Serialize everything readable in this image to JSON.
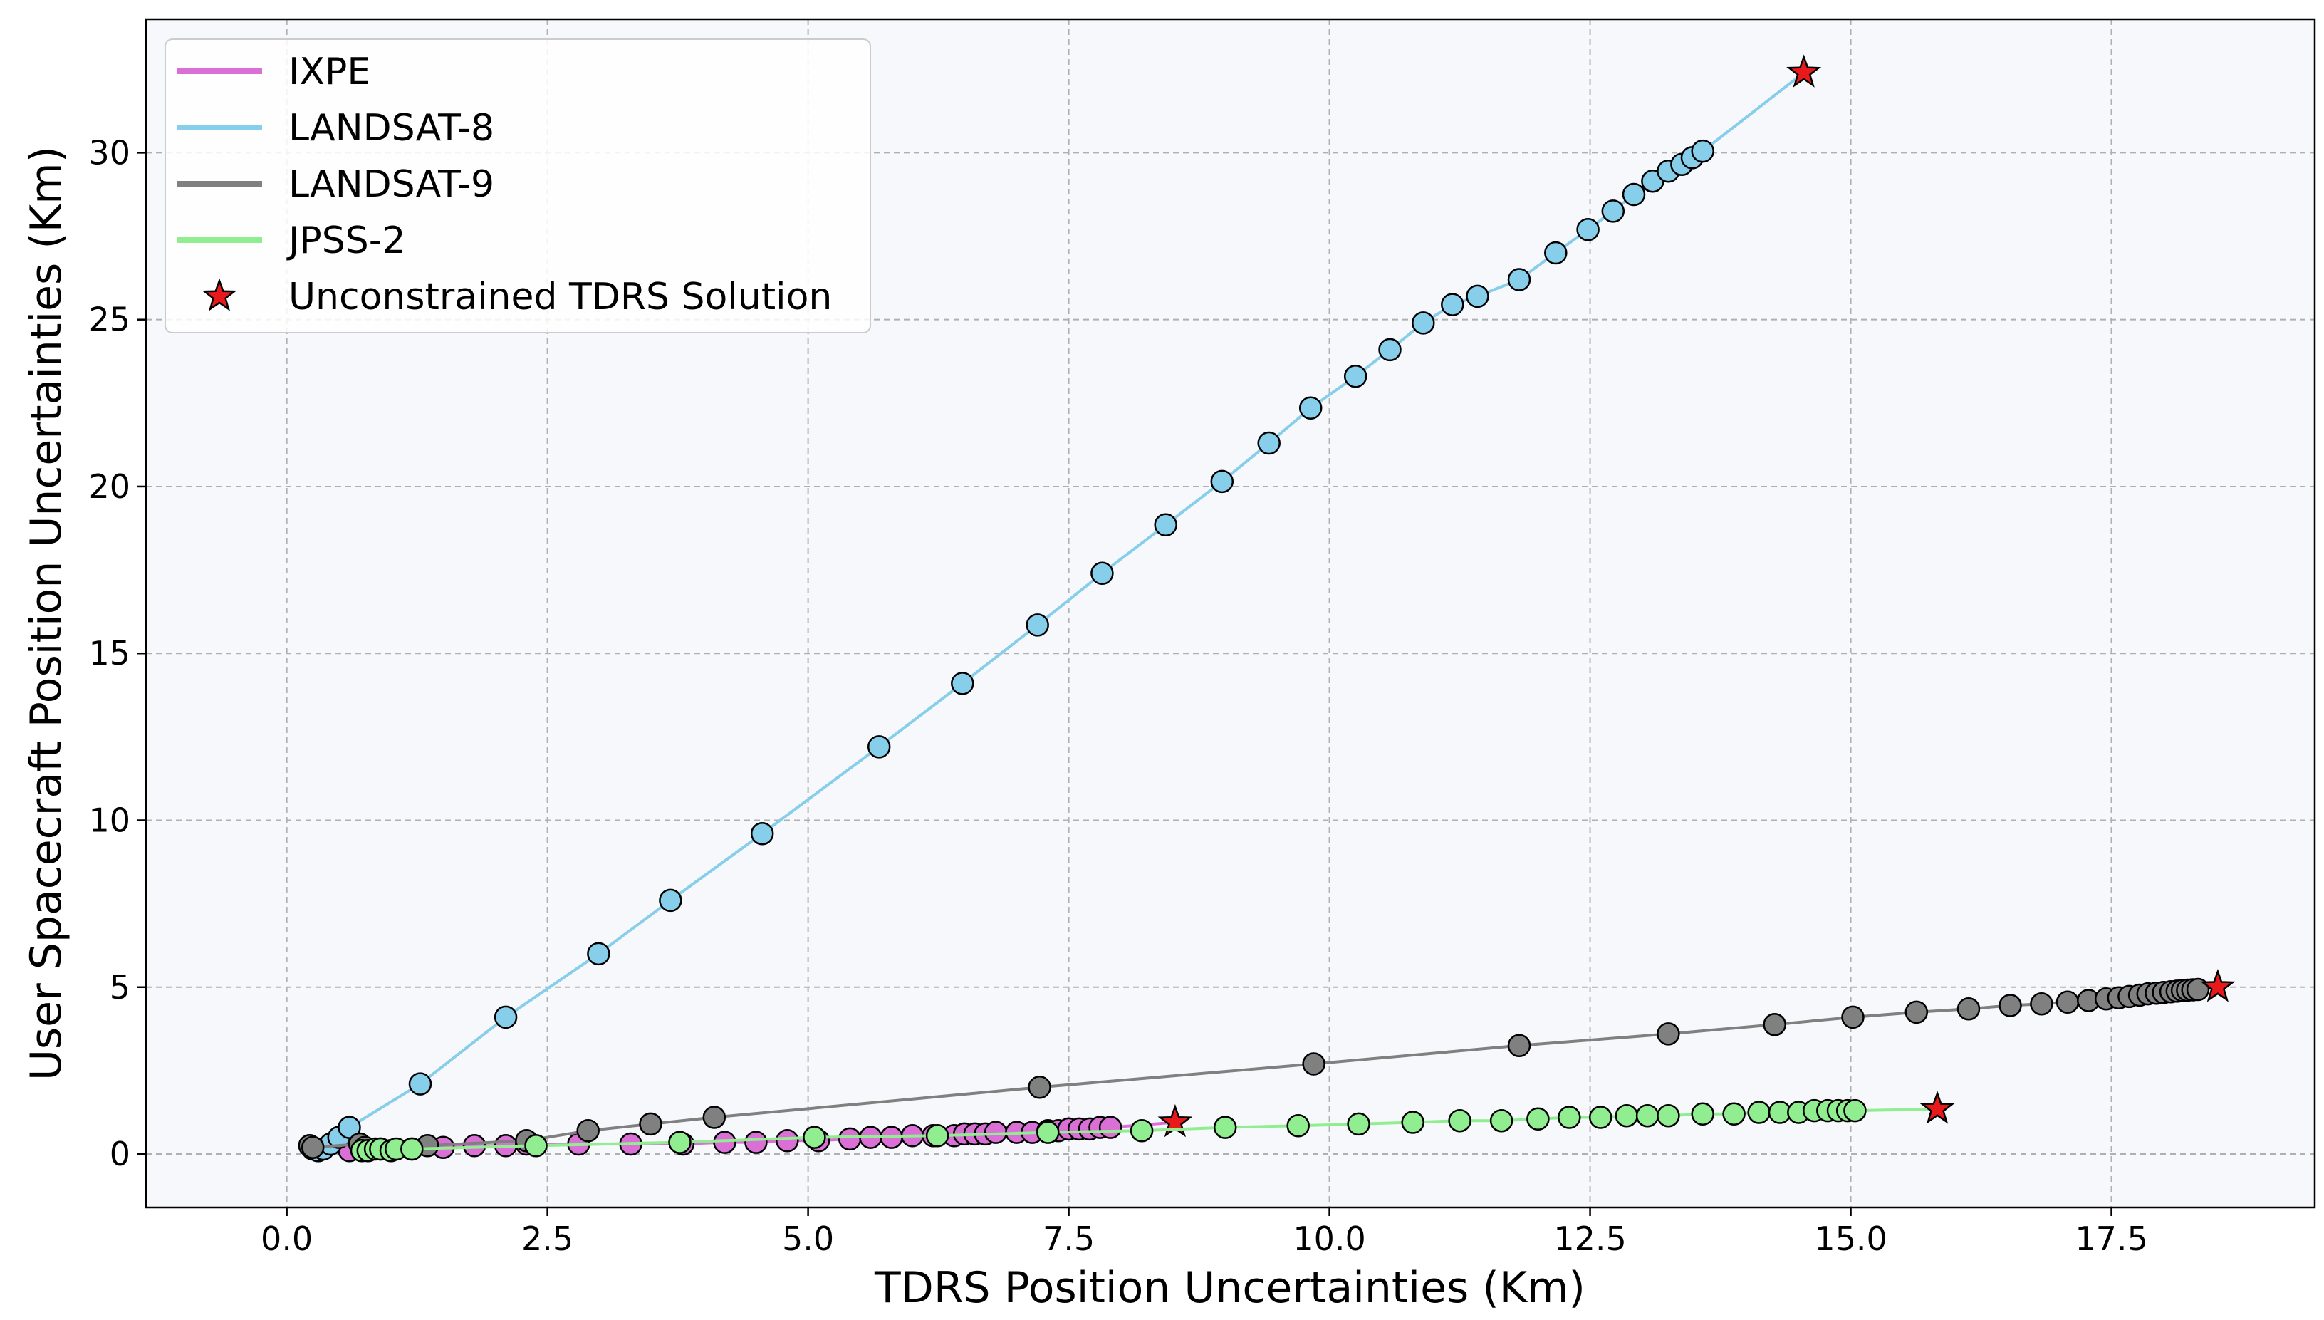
{
  "chart_data": {
    "type": "line",
    "title": "",
    "xlabel": "TDRS Position Uncertainties (Km)",
    "ylabel": "User Spacecraft Position Uncertainties (Km)",
    "xlim": [
      -1.35,
      19.45
    ],
    "ylim": [
      -1.6,
      34.0
    ],
    "xticks": [
      0.0,
      2.5,
      5.0,
      7.5,
      10.0,
      12.5,
      15.0,
      17.5
    ],
    "xtick_labels": [
      "0.0",
      "2.5",
      "5.0",
      "7.5",
      "10.0",
      "12.5",
      "15.0",
      "17.5"
    ],
    "yticks": [
      0,
      5,
      10,
      15,
      20,
      25,
      30
    ],
    "ytick_labels": [
      "0",
      "5",
      "10",
      "15",
      "20",
      "25",
      "30"
    ],
    "grid": true,
    "legend_position": "top-left",
    "colors": {
      "plot_background": "#f7f8fc",
      "grid": "#b0b0b0",
      "marker_edge": "#000000",
      "star_fill": "#e8191b"
    },
    "series": [
      {
        "name": "IXPE",
        "color": "#da70d6",
        "x": [
          0.3,
          0.6,
          0.9,
          1.2,
          1.5,
          1.8,
          2.1,
          2.3,
          2.8,
          3.3,
          3.8,
          4.2,
          4.5,
          4.8,
          5.1,
          5.4,
          5.6,
          5.8,
          6.0,
          6.2,
          6.4,
          6.5,
          6.6,
          6.7,
          6.8,
          7.0,
          7.15,
          7.3,
          7.4,
          7.5,
          7.6,
          7.7,
          7.8,
          7.9
        ],
        "y": [
          0.1,
          0.1,
          0.15,
          0.15,
          0.2,
          0.25,
          0.25,
          0.3,
          0.3,
          0.3,
          0.3,
          0.35,
          0.35,
          0.4,
          0.4,
          0.45,
          0.5,
          0.5,
          0.55,
          0.55,
          0.55,
          0.6,
          0.6,
          0.6,
          0.65,
          0.65,
          0.65,
          0.7,
          0.7,
          0.75,
          0.75,
          0.75,
          0.8,
          0.8
        ],
        "endpoint": {
          "x": 8.52,
          "y": 0.95
        }
      },
      {
        "name": "LANDSAT-8",
        "color": "#87ceeb",
        "x": [
          0.25,
          0.3,
          0.35,
          0.42,
          0.5,
          0.6,
          1.28,
          2.1,
          2.99,
          3.68,
          4.56,
          5.68,
          6.48,
          7.2,
          7.82,
          8.43,
          8.97,
          9.42,
          9.82,
          10.25,
          10.58,
          10.9,
          11.18,
          11.42,
          11.82,
          12.17,
          12.48,
          12.72,
          12.92,
          13.1,
          13.25,
          13.38,
          13.48,
          13.58
        ],
        "y": [
          0.15,
          0.1,
          0.15,
          0.3,
          0.5,
          0.8,
          2.1,
          4.1,
          6.0,
          7.6,
          9.6,
          12.2,
          14.1,
          15.85,
          17.4,
          18.85,
          20.15,
          21.3,
          22.35,
          23.3,
          24.1,
          24.9,
          25.45,
          25.7,
          26.2,
          27.0,
          27.7,
          28.25,
          28.75,
          29.15,
          29.45,
          29.65,
          29.85,
          30.05
        ],
        "endpoint": {
          "x": 14.55,
          "y": 32.4
        }
      },
      {
        "name": "LANDSAT-9",
        "color": "#808080",
        "x": [
          0.22,
          0.25,
          0.7,
          0.75,
          1.35,
          2.3,
          2.89,
          3.49,
          4.1,
          7.22,
          9.85,
          11.82,
          13.25,
          14.27,
          15.02,
          15.63,
          16.13,
          16.53,
          16.83,
          17.08,
          17.28,
          17.45,
          17.57,
          17.67,
          17.77,
          17.85,
          17.93,
          18.0,
          18.07,
          18.13,
          18.18,
          18.23,
          18.28,
          18.33
        ],
        "y": [
          0.25,
          0.2,
          0.3,
          0.2,
          0.25,
          0.4,
          0.7,
          0.9,
          1.1,
          2.0,
          2.7,
          3.25,
          3.6,
          3.88,
          4.1,
          4.25,
          4.35,
          4.45,
          4.5,
          4.55,
          4.6,
          4.65,
          4.68,
          4.72,
          4.76,
          4.8,
          4.82,
          4.84,
          4.86,
          4.88,
          4.9,
          4.91,
          4.92,
          4.93
        ],
        "endpoint": {
          "x": 18.52,
          "y": 5.0
        }
      },
      {
        "name": "JPSS-2",
        "color": "#90ee90",
        "x": [
          0.72,
          0.78,
          0.85,
          0.9,
          1.0,
          1.05,
          1.2,
          2.39,
          3.77,
          5.06,
          6.24,
          7.3,
          8.2,
          9.0,
          9.7,
          10.28,
          10.8,
          11.25,
          11.65,
          12.0,
          12.3,
          12.6,
          12.85,
          13.05,
          13.25,
          13.58,
          13.88,
          14.12,
          14.32,
          14.5,
          14.65,
          14.78,
          14.88,
          14.97,
          15.04
        ],
        "y": [
          0.1,
          0.1,
          0.15,
          0.15,
          0.1,
          0.15,
          0.15,
          0.25,
          0.35,
          0.5,
          0.55,
          0.65,
          0.7,
          0.8,
          0.85,
          0.9,
          0.95,
          1.0,
          1.0,
          1.05,
          1.1,
          1.1,
          1.15,
          1.15,
          1.15,
          1.2,
          1.2,
          1.25,
          1.25,
          1.25,
          1.3,
          1.3,
          1.3,
          1.3,
          1.3
        ],
        "endpoint": {
          "x": 15.83,
          "y": 1.35
        }
      }
    ],
    "legend": [
      {
        "label": "IXPE",
        "kind": "line",
        "color": "#da70d6"
      },
      {
        "label": "LANDSAT-8",
        "kind": "line",
        "color": "#87ceeb"
      },
      {
        "label": "LANDSAT-9",
        "kind": "line",
        "color": "#808080"
      },
      {
        "label": "JPSS-2",
        "kind": "line",
        "color": "#90ee90"
      },
      {
        "label": "Unconstrained TDRS Solution",
        "kind": "star",
        "color": "#e8191b"
      }
    ]
  }
}
